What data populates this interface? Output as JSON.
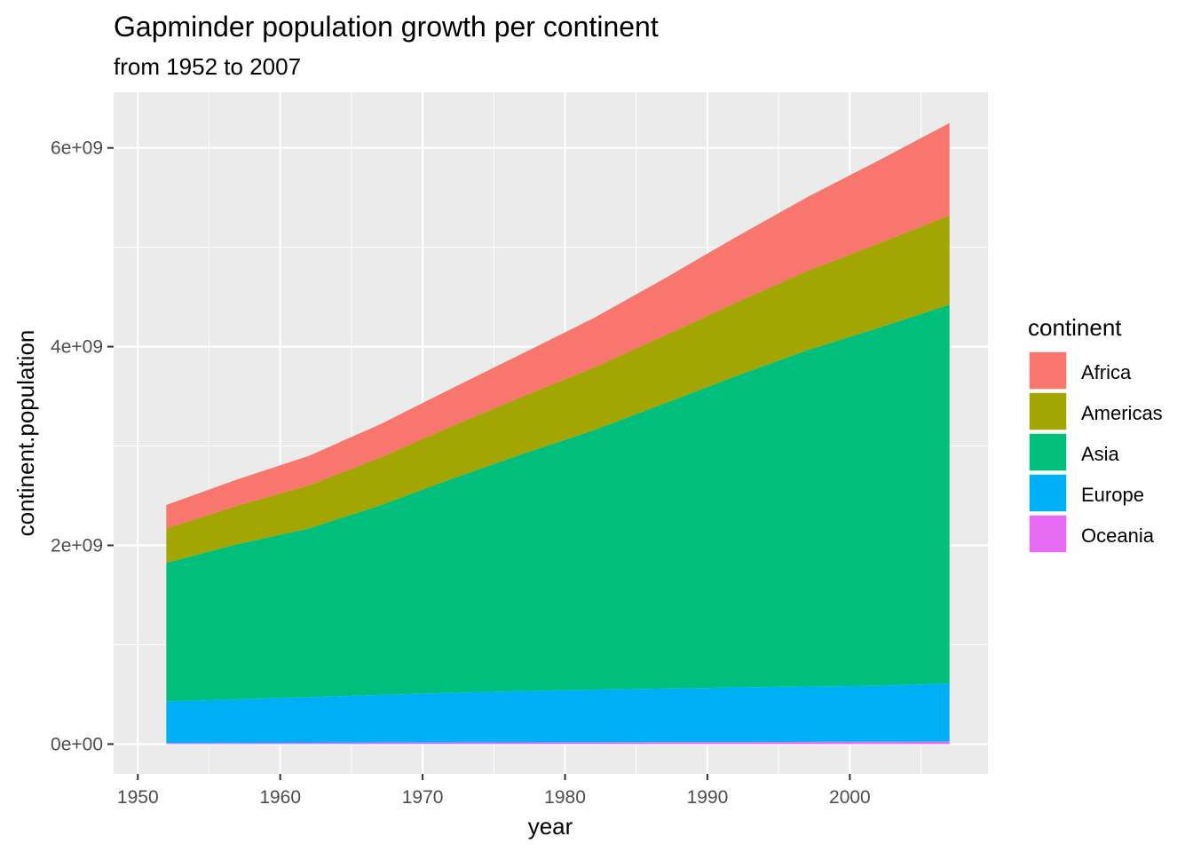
{
  "chart_data": {
    "type": "area",
    "stacked": true,
    "title": "Gapminder population growth per continent",
    "subtitle": "from 1952 to 2007",
    "xlabel": "year",
    "ylabel": "continent.population",
    "xlim": [
      1948.3,
      2009.7
    ],
    "ylim": [
      -300000000,
      6560000000
    ],
    "x_ticks": [
      1950,
      1960,
      1970,
      1980,
      1990,
      2000
    ],
    "x_tick_labels": [
      "1950",
      "1960",
      "1970",
      "1980",
      "1990",
      "2000"
    ],
    "y_ticks": [
      0,
      2000000000,
      4000000000,
      6000000000
    ],
    "y_tick_labels": [
      "0e+00",
      "2e+09",
      "4e+09",
      "6e+09"
    ],
    "grid": true,
    "legend": {
      "title": "continent",
      "placement": "right"
    },
    "x": [
      1952,
      1957,
      1962,
      1967,
      1972,
      1977,
      1982,
      1987,
      1992,
      1997,
      2002,
      2007
    ],
    "series": [
      {
        "name": "Africa",
        "color": "#F8766D",
        "values": [
          237600000,
          264800000,
          296500000,
          335300000,
          379900000,
          433100000,
          499300000,
          574800000,
          659100000,
          743800000,
          833700000,
          929500000
        ]
      },
      {
        "name": "Americas",
        "color": "#A3A500",
        "values": [
          345200000,
          386950000,
          433300000,
          480700000,
          529400000,
          578100000,
          630300000,
          682800000,
          739300000,
          796900000,
          849800000,
          898900000
        ]
      },
      {
        "name": "Asia",
        "color": "#00BF7D",
        "values": [
          1395400000,
          1562800000,
          1696400000,
          1905700000,
          2150970000,
          2384500000,
          2610100000,
          2871200000,
          3133300000,
          3383300000,
          3601800000,
          3811950000
        ]
      },
      {
        "name": "Europe",
        "color": "#00B0F6",
        "values": [
          418100000,
          437900000,
          460400000,
          481200000,
          500600000,
          517200000,
          529000000,
          538300000,
          550000000,
          557700000,
          563000000,
          586100000
        ]
      },
      {
        "name": "Oceania",
        "color": "#E76BF3",
        "values": [
          10700000,
          11900000,
          13000000,
          14500000,
          16100000,
          17200000,
          18400000,
          19800000,
          21000000,
          22200000,
          23500000,
          24500000
        ]
      }
    ]
  }
}
